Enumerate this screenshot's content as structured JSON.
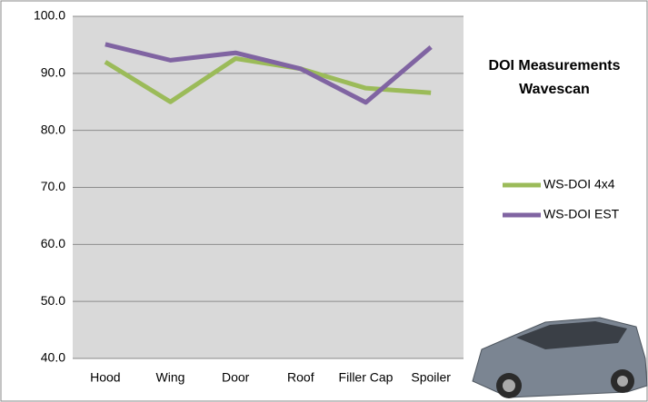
{
  "chart_data": {
    "type": "line",
    "title": "DOI Measurements Wavescan",
    "categories": [
      "Hood",
      "Wing",
      "Door",
      "Roof",
      "Filler Cap",
      "Spoiler"
    ],
    "series": [
      {
        "name": "WS-DOI 4x4",
        "color": "#9bbb59",
        "values": [
          92.0,
          85.0,
          92.6,
          90.8,
          87.4,
          86.6
        ]
      },
      {
        "name": "WS-DOI EST",
        "color": "#8064a2",
        "values": [
          95.1,
          92.3,
          93.6,
          90.8,
          84.9,
          94.6
        ]
      }
    ],
    "ylim": [
      40,
      100
    ],
    "yticks": [
      {
        "value": 40,
        "label": "40.0"
      },
      {
        "value": 50,
        "label": "50.0"
      },
      {
        "value": 60,
        "label": "60.0"
      },
      {
        "value": 70,
        "label": "70.0"
      },
      {
        "value": 80,
        "label": "80.0"
      },
      {
        "value": 90,
        "label": "90.0"
      },
      {
        "value": 100,
        "label": "100.0"
      }
    ],
    "grid": true,
    "legend": "right"
  }
}
